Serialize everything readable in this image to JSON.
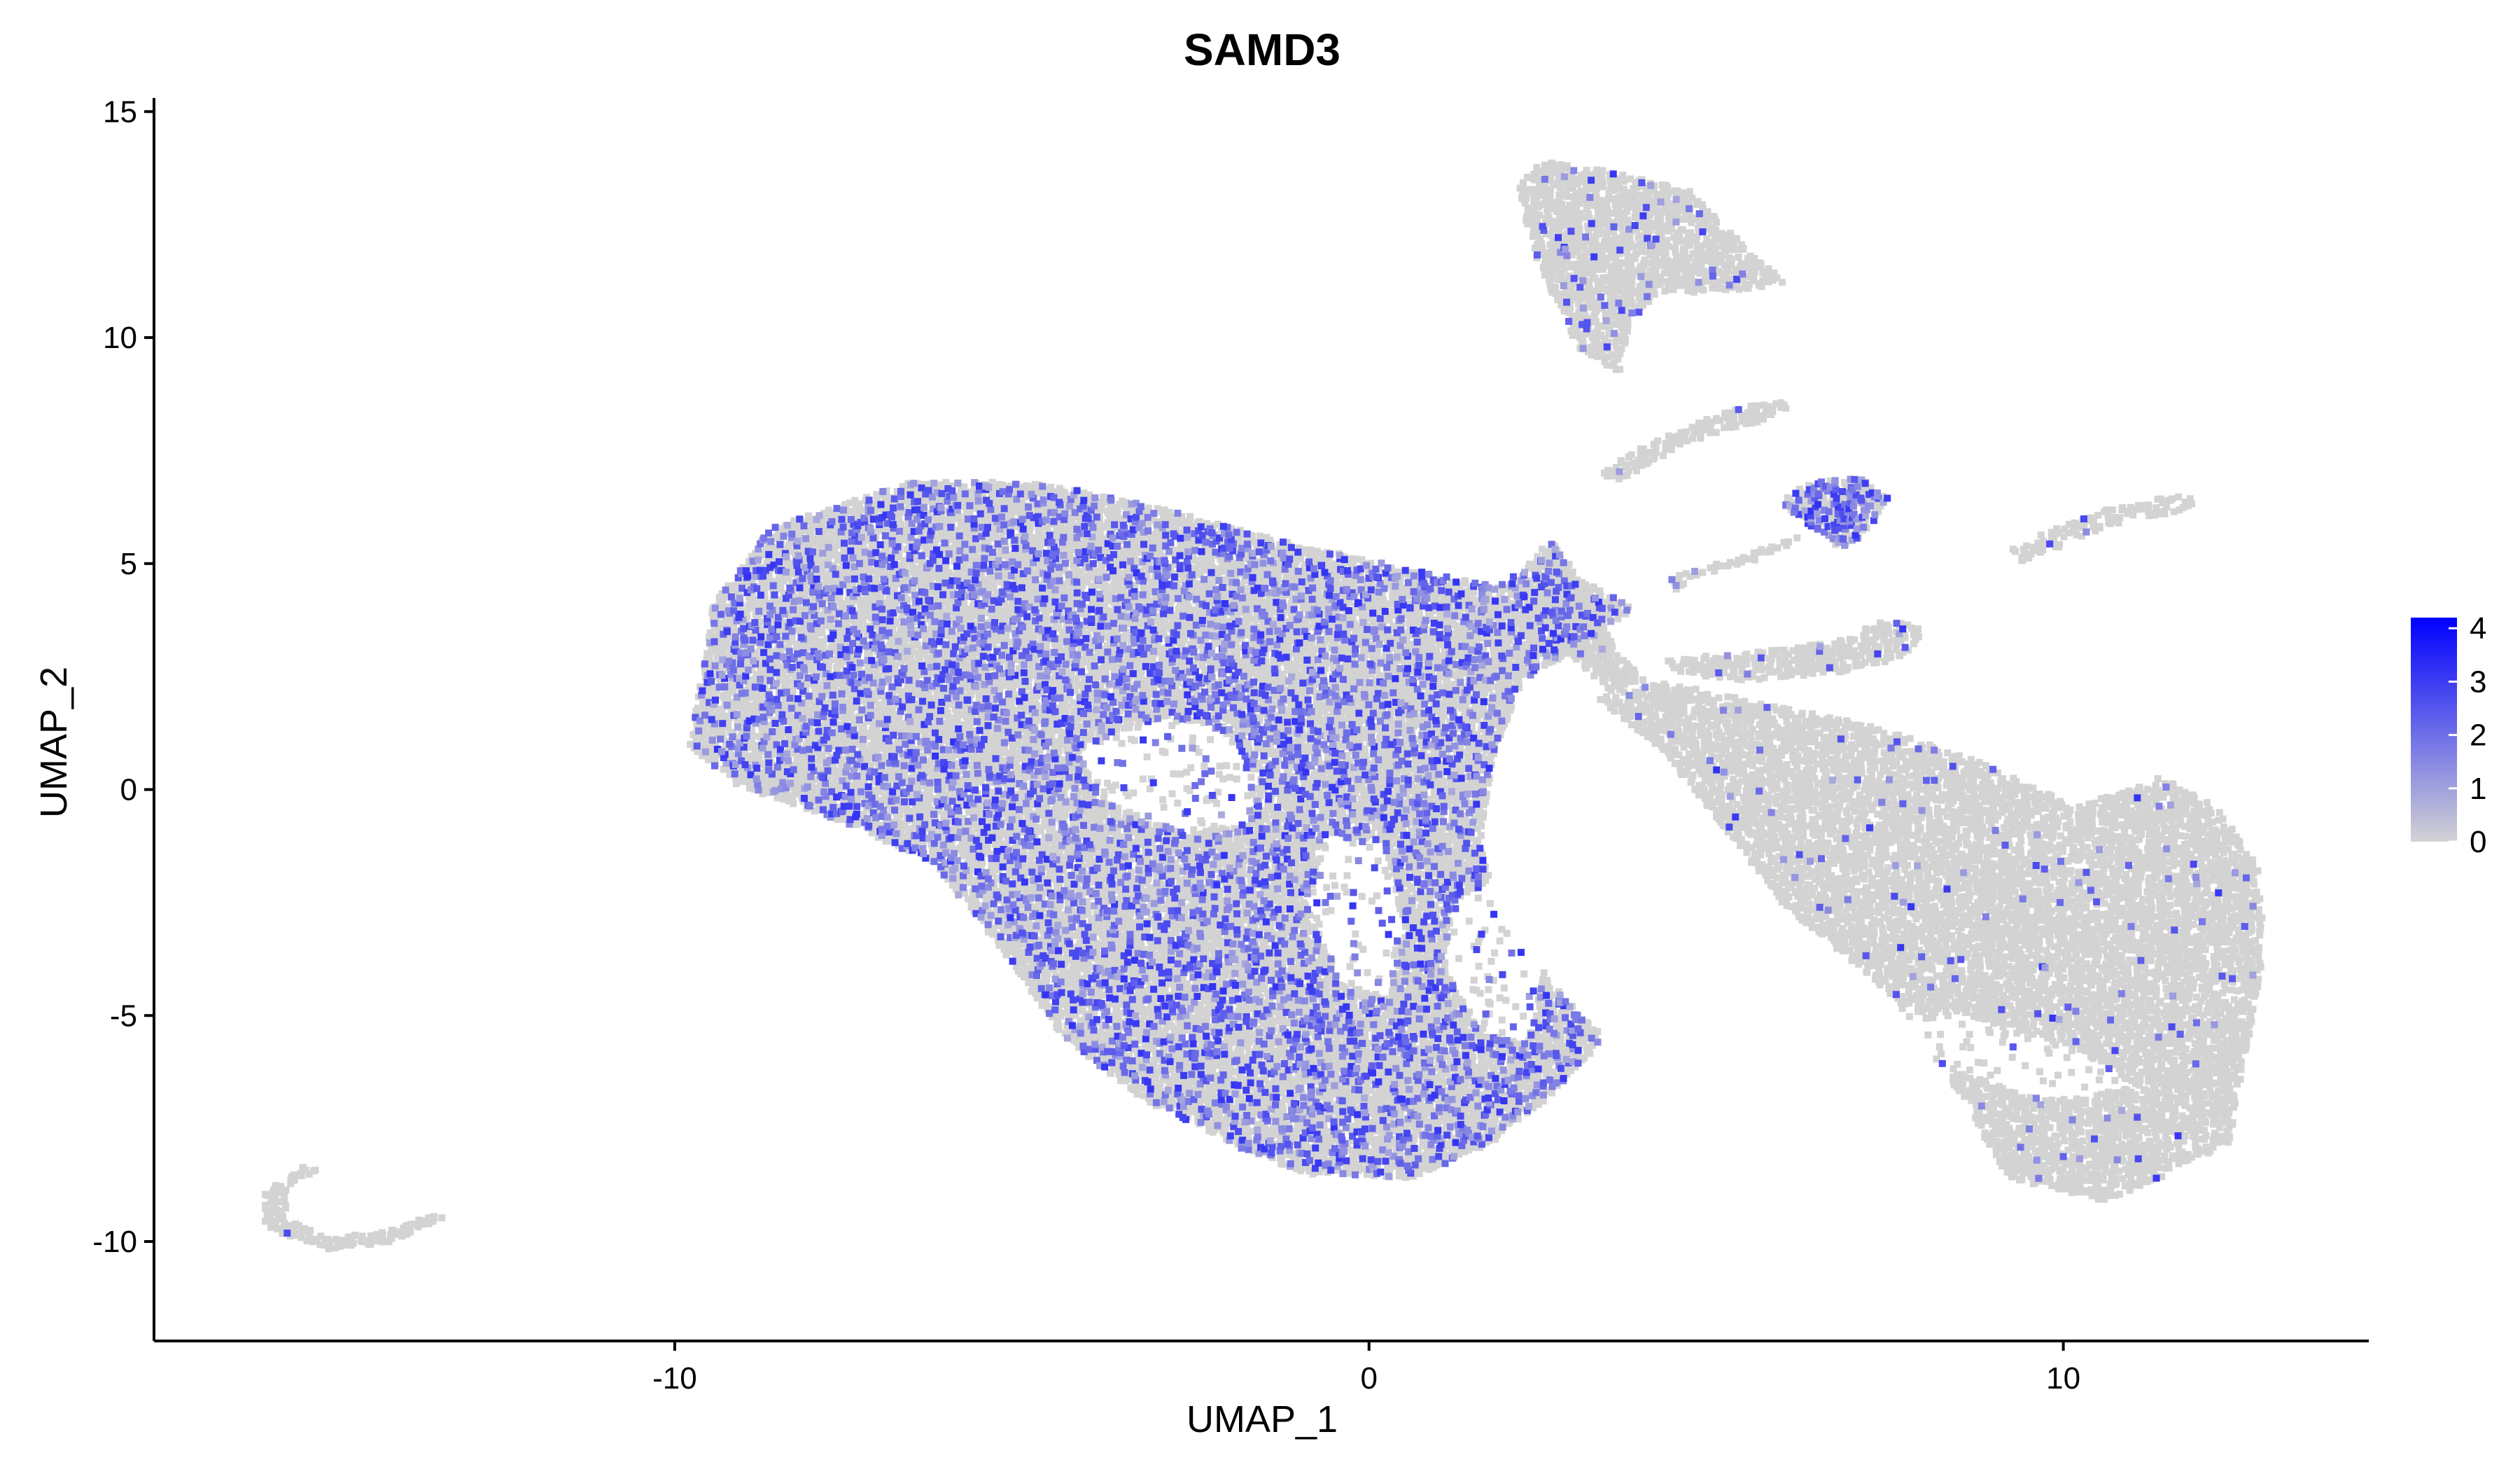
{
  "chart_data": {
    "type": "scatter",
    "title": "SAMD3",
    "xlabel": "UMAP_1",
    "ylabel": "UMAP_2",
    "xlim": [
      -17.5,
      14.4
    ],
    "ylim": [
      -12.2,
      15.3
    ],
    "xticks": [
      -10,
      0,
      10
    ],
    "yticks": [
      -10,
      -5,
      0,
      5,
      10,
      15
    ],
    "xtick_labels": [
      "-10",
      "0",
      "10"
    ],
    "ytick_labels": [
      "-10",
      "-5",
      "0",
      "5",
      "10",
      "15"
    ],
    "grid": false,
    "legend_position": "right",
    "colorbar": {
      "label": "",
      "min": 0,
      "max": 4.2,
      "ticks": [
        0,
        1,
        2,
        3,
        4
      ],
      "tick_labels": [
        "0",
        "1",
        "2",
        "3",
        "4"
      ],
      "low_color": "#d3d3d3",
      "high_color": "#0000ff"
    },
    "regions": [
      {
        "name": "main-cluster",
        "polygon": [
          [
            -9.5,
            4
          ],
          [
            -8.6,
            5.8
          ],
          [
            -6.6,
            6.8
          ],
          [
            -4.8,
            6.8
          ],
          [
            -3.2,
            6.3
          ],
          [
            -1.5,
            5.6
          ],
          [
            0.5,
            4.9
          ],
          [
            1.8,
            4.5
          ],
          [
            2.2,
            4.8
          ],
          [
            2.6,
            5.6
          ],
          [
            2.9,
            4.8
          ],
          [
            3.8,
            4.0
          ],
          [
            3.1,
            3.2
          ],
          [
            2.2,
            2.4
          ],
          [
            1.9,
            1.2
          ],
          [
            1.8,
            0.8
          ],
          [
            1.6,
            -1.2
          ],
          [
            1.9,
            -2.8
          ],
          [
            2.8,
            -4.6
          ],
          [
            3.4,
            -5.5
          ],
          [
            2.6,
            -6.8
          ],
          [
            1.7,
            -7.9
          ],
          [
            0.6,
            -8.6
          ],
          [
            -0.9,
            -8.5
          ],
          [
            -1.9,
            -7.9
          ],
          [
            -2.5,
            -7.4
          ],
          [
            -3.2,
            -6.9
          ],
          [
            -4.4,
            -5.5
          ],
          [
            -5.3,
            -3.5
          ],
          [
            -6.3,
            -1.6
          ],
          [
            -7.6,
            -0.7
          ],
          [
            -9.1,
            0.1
          ],
          [
            -9.8,
            1.0
          ],
          [
            -9.6,
            2.6
          ]
        ],
        "expr_prob": 0.3,
        "gray_density": 1.0
      },
      {
        "name": "right-cluster",
        "polygon": [
          [
            3.3,
            2.0
          ],
          [
            4.2,
            0.9
          ],
          [
            5.2,
            -1.0
          ],
          [
            6.0,
            -2.6
          ],
          [
            7.5,
            -4.5
          ],
          [
            8.5,
            -6.7
          ],
          [
            9.2,
            -8.6
          ],
          [
            10.6,
            -9.1
          ],
          [
            11.4,
            -8.6
          ],
          [
            12.4,
            -7.8
          ],
          [
            12.6,
            -6.1
          ],
          [
            12.9,
            -3.6
          ],
          [
            12.8,
            -1.6
          ],
          [
            12.2,
            -0.4
          ],
          [
            11.4,
            0.3
          ],
          [
            10.2,
            -0.4
          ],
          [
            8.8,
            0.6
          ],
          [
            7.3,
            1.4
          ],
          [
            5.4,
            2.0
          ],
          [
            4.2,
            2.4
          ]
        ],
        "expr_prob": 0.02,
        "gray_density": 0.85
      },
      {
        "name": "top-cluster",
        "polygon": [
          [
            2.1,
            13.3
          ],
          [
            2.5,
            13.9
          ],
          [
            3.4,
            13.7
          ],
          [
            4.6,
            13.3
          ],
          [
            5.3,
            12.2
          ],
          [
            6.0,
            11.2
          ],
          [
            5.2,
            11.0
          ],
          [
            4.2,
            11.0
          ],
          [
            3.8,
            10.4
          ],
          [
            3.6,
            9.2
          ],
          [
            3.0,
            9.8
          ],
          [
            2.4,
            11.8
          ]
        ],
        "expr_prob": 0.05,
        "gray_density": 0.9
      },
      {
        "name": "stem-link",
        "polygon": [
          [
            2.6,
            5.5
          ],
          [
            3.2,
            4.4
          ],
          [
            3.6,
            3.0
          ],
          [
            4.0,
            2.4
          ],
          [
            3.5,
            2.1
          ],
          [
            2.9,
            3.0
          ],
          [
            2.4,
            4.0
          ]
        ],
        "expr_prob": 0.02,
        "gray_density": 1.0
      },
      {
        "name": "arc-upper",
        "polygon": [
          [
            3.3,
            7.0
          ],
          [
            4.2,
            7.8
          ],
          [
            5.4,
            8.5
          ],
          [
            6.2,
            8.6
          ],
          [
            5.6,
            8.1
          ],
          [
            4.6,
            7.7
          ],
          [
            3.6,
            6.8
          ]
        ],
        "expr_prob": 0.03,
        "gray_density": 0.8
      },
      {
        "name": "purple-blob",
        "polygon": [
          [
            5.9,
            6.3
          ],
          [
            6.3,
            6.8
          ],
          [
            7.2,
            6.9
          ],
          [
            7.5,
            6.4
          ],
          [
            7.1,
            5.6
          ],
          [
            6.8,
            5.3
          ],
          [
            6.3,
            5.9
          ]
        ],
        "expr_prob": 0.55,
        "gray_density": 1.0
      },
      {
        "name": "arc-middle",
        "polygon": [
          [
            4.3,
            4.7
          ],
          [
            5.2,
            5.1
          ],
          [
            6.2,
            5.6
          ],
          [
            6.0,
            5.3
          ],
          [
            5.0,
            4.8
          ],
          [
            4.4,
            4.4
          ]
        ],
        "expr_prob": 0.05,
        "gray_density": 0.8
      },
      {
        "name": "arc-lower",
        "polygon": [
          [
            4.2,
            2.9
          ],
          [
            5.3,
            3.0
          ],
          [
            6.8,
            3.3
          ],
          [
            7.5,
            3.8
          ],
          [
            8.0,
            3.5
          ],
          [
            7.7,
            2.9
          ],
          [
            6.8,
            2.6
          ],
          [
            5.4,
            2.4
          ],
          [
            4.4,
            2.6
          ]
        ],
        "expr_prob": 0.05,
        "gray_density": 0.85
      },
      {
        "name": "right-arc",
        "polygon": [
          [
            9.2,
            5.3
          ],
          [
            10.5,
            6.2
          ],
          [
            12.0,
            6.6
          ],
          [
            11.8,
            6.2
          ],
          [
            10.6,
            5.8
          ],
          [
            9.4,
            5.0
          ]
        ],
        "expr_prob": 0.02,
        "gray_density": 0.7
      },
      {
        "name": "left-arc",
        "polygon": [
          [
            -15.3,
            -8.3
          ],
          [
            -15.9,
            -8.9
          ],
          [
            -15.9,
            -9.7
          ],
          [
            -15.0,
            -10.2
          ],
          [
            -14.1,
            -10.0
          ],
          [
            -13.3,
            -9.5
          ],
          [
            -13.5,
            -9.4
          ],
          [
            -14.2,
            -9.8
          ],
          [
            -15.0,
            -9.9
          ],
          [
            -15.6,
            -9.5
          ],
          [
            -15.6,
            -8.8
          ],
          [
            -15.1,
            -8.4
          ]
        ],
        "expr_prob": 0.02,
        "gray_density": 1.0
      }
    ],
    "holes": [
      {
        "name": "hole-upper",
        "polygon": [
          [
            -4.2,
            0.8
          ],
          [
            -3.6,
            1.3
          ],
          [
            -2.8,
            1.6
          ],
          [
            -2.1,
            1.3
          ],
          [
            -1.6,
            0.3
          ],
          [
            -1.8,
            -0.7
          ],
          [
            -2.6,
            -1.0
          ],
          [
            -3.8,
            -0.3
          ]
        ]
      },
      {
        "name": "hole-center",
        "polygon": [
          [
            -0.6,
            -1.0
          ],
          [
            0.2,
            -1.2
          ],
          [
            0.5,
            -3.0
          ],
          [
            0.3,
            -4.6
          ],
          [
            -0.4,
            -4.3
          ],
          [
            -0.9,
            -2.6
          ]
        ]
      },
      {
        "name": "hole-right",
        "polygon": [
          [
            1.2,
            -2.4
          ],
          [
            1.9,
            -2.0
          ],
          [
            2.5,
            -3.8
          ],
          [
            2.3,
            -5.6
          ],
          [
            1.6,
            -5.4
          ],
          [
            1.1,
            -4.0
          ]
        ]
      },
      {
        "name": "hole-lower-right",
        "polygon": [
          [
            7.2,
            -4.8
          ],
          [
            8.6,
            -5.0
          ],
          [
            10.2,
            -5.7
          ],
          [
            11.0,
            -6.6
          ],
          [
            9.8,
            -6.9
          ],
          [
            8.4,
            -6.2
          ],
          [
            7.5,
            -5.6
          ]
        ]
      }
    ]
  }
}
